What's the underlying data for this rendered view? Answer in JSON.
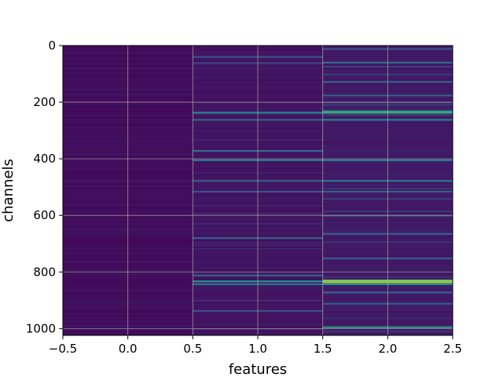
{
  "chart_data": {
    "type": "heatmap",
    "title": "",
    "xlabel": "features",
    "ylabel": "channels",
    "xlim": [
      -0.5,
      2.5
    ],
    "ylim": [
      1024,
      0
    ],
    "y_inverted": true,
    "grid": true,
    "colormap": "viridis",
    "x_ticks": [
      "−0.5",
      "0.0",
      "0.5",
      "1.0",
      "1.5",
      "2.0",
      "2.5"
    ],
    "x_tick_values": [
      -0.5,
      0.0,
      0.5,
      1.0,
      1.5,
      2.0,
      2.5
    ],
    "y_ticks": [
      "0",
      "200",
      "400",
      "600",
      "800",
      "1000"
    ],
    "y_tick_values": [
      0,
      200,
      400,
      600,
      800,
      1000
    ],
    "columns": [
      0,
      1,
      2
    ],
    "n_channels": 1024,
    "background_level": [
      0.04,
      0.06,
      0.08
    ],
    "highlight_bands": [
      {
        "column": 1,
        "channel": 40,
        "level": 0.25
      },
      {
        "column": 1,
        "channel": 62,
        "level": 0.2
      },
      {
        "column": 1,
        "channel": 237,
        "level": 0.45
      },
      {
        "column": 1,
        "channel": 262,
        "level": 0.3
      },
      {
        "column": 1,
        "channel": 372,
        "level": 0.35
      },
      {
        "column": 1,
        "channel": 405,
        "level": 0.4
      },
      {
        "column": 1,
        "channel": 478,
        "level": 0.3
      },
      {
        "column": 1,
        "channel": 516,
        "level": 0.25
      },
      {
        "column": 1,
        "channel": 680,
        "level": 0.3
      },
      {
        "column": 1,
        "channel": 812,
        "level": 0.3
      },
      {
        "column": 1,
        "channel": 833,
        "level": 0.5
      },
      {
        "column": 1,
        "channel": 843,
        "level": 0.4
      },
      {
        "column": 1,
        "channel": 937,
        "level": 0.25
      },
      {
        "column": 2,
        "channel": 12,
        "level": 0.25
      },
      {
        "column": 2,
        "channel": 60,
        "level": 0.35
      },
      {
        "column": 2,
        "channel": 128,
        "level": 0.3
      },
      {
        "column": 2,
        "channel": 176,
        "level": 0.3
      },
      {
        "column": 2,
        "channel": 232,
        "level": 0.55
      },
      {
        "column": 2,
        "channel": 237,
        "level": 0.62
      },
      {
        "column": 2,
        "channel": 262,
        "level": 0.45
      },
      {
        "column": 2,
        "channel": 405,
        "level": 0.42
      },
      {
        "column": 2,
        "channel": 478,
        "level": 0.4
      },
      {
        "column": 2,
        "channel": 516,
        "level": 0.3
      },
      {
        "column": 2,
        "channel": 665,
        "level": 0.3
      },
      {
        "column": 2,
        "channel": 752,
        "level": 0.28
      },
      {
        "column": 2,
        "channel": 830,
        "level": 0.8
      },
      {
        "column": 2,
        "channel": 836,
        "level": 0.85
      },
      {
        "column": 2,
        "channel": 843,
        "level": 0.5
      },
      {
        "column": 2,
        "channel": 872,
        "level": 0.3
      },
      {
        "column": 2,
        "channel": 912,
        "level": 0.28
      },
      {
        "column": 2,
        "channel": 995,
        "level": 0.55
      }
    ]
  }
}
